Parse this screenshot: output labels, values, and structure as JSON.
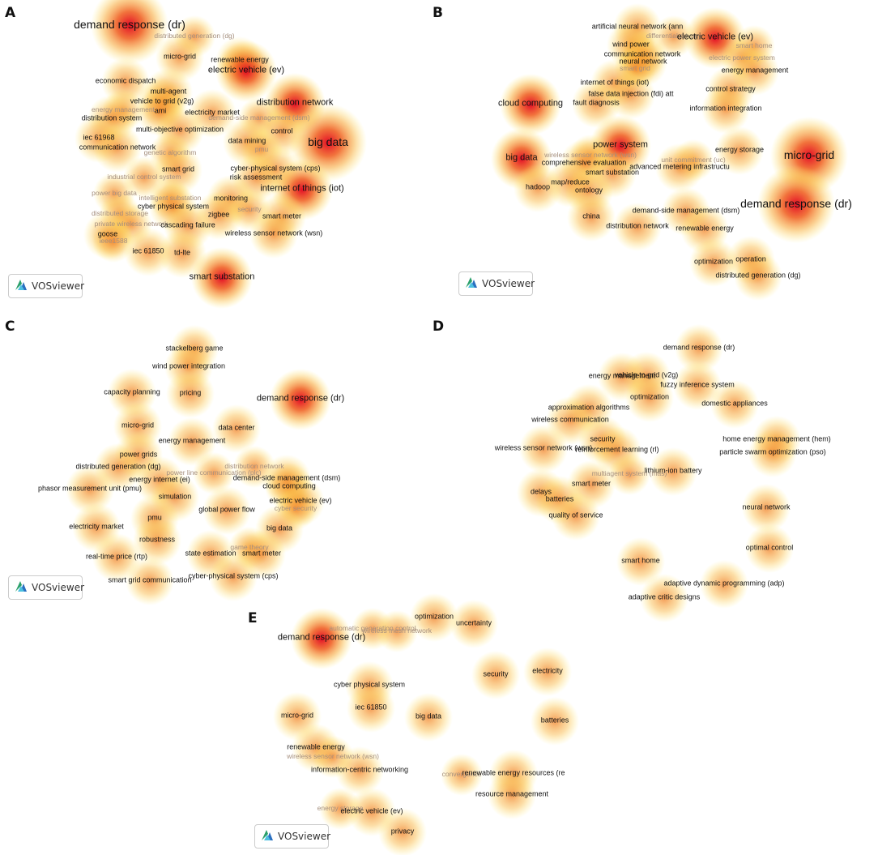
{
  "brand": {
    "vosviewer": "VOSviewer"
  },
  "colors": {
    "core": "#e2001a",
    "mid": "#f07a1e",
    "outer": "#ffe64a"
  },
  "panels": [
    {
      "label": "A",
      "terms": [
        {
          "t": "demand response (dr)",
          "w": 3
        },
        {
          "t": "distributed generation (dg)",
          "w": 0
        },
        {
          "t": "micro-grid",
          "w": 1
        },
        {
          "t": "renewable energy",
          "w": 1
        },
        {
          "t": "electric vehicle (ev)",
          "w": 2
        },
        {
          "t": "economic dispatch",
          "w": 1
        },
        {
          "t": "multi-agent",
          "w": 1
        },
        {
          "t": "vehicle to grid (v2g)",
          "w": 1
        },
        {
          "t": "energy management",
          "w": 0
        },
        {
          "t": "ami",
          "w": 1
        },
        {
          "t": "distribution system",
          "w": 1
        },
        {
          "t": "electricity market",
          "w": 1
        },
        {
          "t": "distribution network",
          "w": 2
        },
        {
          "t": "demand-side management (dsm)",
          "w": 0
        },
        {
          "t": "iec 61968",
          "w": 1
        },
        {
          "t": "multi-objective optimization",
          "w": 1
        },
        {
          "t": "control",
          "w": 1
        },
        {
          "t": "communication network",
          "w": 1
        },
        {
          "t": "data mining",
          "w": 1
        },
        {
          "t": "big data",
          "w": 3
        },
        {
          "t": "pmu",
          "w": 0
        },
        {
          "t": "genetic algorithm",
          "w": 0
        },
        {
          "t": "smart grid",
          "w": 1
        },
        {
          "t": "cyber-physical system (cps)",
          "w": 1
        },
        {
          "t": "industrial control system",
          "w": 0
        },
        {
          "t": "risk assessment",
          "w": 1
        },
        {
          "t": "internet of things (iot)",
          "w": 2
        },
        {
          "t": "power big data",
          "w": 0
        },
        {
          "t": "intelligent substation",
          "w": 0
        },
        {
          "t": "monitoring",
          "w": 1
        },
        {
          "t": "cyber physical system",
          "w": 1
        },
        {
          "t": "distributed storage",
          "w": 0
        },
        {
          "t": "zigbee",
          "w": 1
        },
        {
          "t": "security",
          "w": 0
        },
        {
          "t": "smart meter",
          "w": 1
        },
        {
          "t": "private wireless network",
          "w": 0
        },
        {
          "t": "cascading failure",
          "w": 1
        },
        {
          "t": "goose",
          "w": 1
        },
        {
          "t": "wireless sensor network (wsn)",
          "w": 1
        },
        {
          "t": "ieee1588",
          "w": 0
        },
        {
          "t": "iec 61850",
          "w": 1
        },
        {
          "t": "td-lte",
          "w": 1
        },
        {
          "t": "smart substation",
          "w": 2
        }
      ]
    },
    {
      "label": "B",
      "terms": [
        {
          "t": "artificial neural network (ann",
          "w": 1
        },
        {
          "t": "differential privacy",
          "w": 0
        },
        {
          "t": "wind power",
          "w": 1
        },
        {
          "t": "electric vehicle (ev)",
          "w": 2
        },
        {
          "t": "smart home",
          "w": 0
        },
        {
          "t": "communication network",
          "w": 1
        },
        {
          "t": "electric power system",
          "w": 0
        },
        {
          "t": "neural network",
          "w": 1
        },
        {
          "t": "smart grid",
          "w": 0
        },
        {
          "t": "energy management",
          "w": 1
        },
        {
          "t": "internet of things (iot)",
          "w": 1
        },
        {
          "t": "control strategy",
          "w": 1
        },
        {
          "t": "false data injection (fdi) att",
          "w": 1
        },
        {
          "t": "cloud computing",
          "w": 2
        },
        {
          "t": "fault diagnosis",
          "w": 1
        },
        {
          "t": "information integration",
          "w": 1
        },
        {
          "t": "power system",
          "w": 2
        },
        {
          "t": "big data",
          "w": 2
        },
        {
          "t": "wireless sensor network (wsn)",
          "w": 0
        },
        {
          "t": "energy storage",
          "w": 1
        },
        {
          "t": "micro-grid",
          "w": 3
        },
        {
          "t": "comprehensive evaluation",
          "w": 1
        },
        {
          "t": "unit commitment (uc)",
          "w": 0
        },
        {
          "t": "smart substation",
          "w": 1
        },
        {
          "t": "advanced metering infrastructu",
          "w": 1
        },
        {
          "t": "map/reduce",
          "w": 1
        },
        {
          "t": "hadoop",
          "w": 1
        },
        {
          "t": "ontology",
          "w": 1
        },
        {
          "t": "demand response (dr)",
          "w": 3
        },
        {
          "t": "demand-side management (dsm)",
          "w": 1
        },
        {
          "t": "china",
          "w": 1
        },
        {
          "t": "distribution network",
          "w": 1
        },
        {
          "t": "renewable energy",
          "w": 1
        },
        {
          "t": "optimization",
          "w": 1
        },
        {
          "t": "operation",
          "w": 1
        },
        {
          "t": "distributed generation (dg)",
          "w": 1
        }
      ]
    },
    {
      "label": "C",
      "terms": [
        {
          "t": "stackelberg game",
          "w": 1
        },
        {
          "t": "wind power integration",
          "w": 1
        },
        {
          "t": "capacity planning",
          "w": 1
        },
        {
          "t": "pricing",
          "w": 1
        },
        {
          "t": "demand response (dr)",
          "w": 2
        },
        {
          "t": "micro-grid",
          "w": 1
        },
        {
          "t": "data center",
          "w": 1
        },
        {
          "t": "energy management",
          "w": 1
        },
        {
          "t": "power grids",
          "w": 1
        },
        {
          "t": "distribution network",
          "w": 0
        },
        {
          "t": "distributed generation (dg)",
          "w": 1
        },
        {
          "t": "power line communication (plc)",
          "w": 0
        },
        {
          "t": "energy internet (ei)",
          "w": 1
        },
        {
          "t": "demand-side management (dsm)",
          "w": 1
        },
        {
          "t": "phasor measurement unit (pmu)",
          "w": 1
        },
        {
          "t": "cloud computing",
          "w": 1
        },
        {
          "t": "simulation",
          "w": 1
        },
        {
          "t": "electric vehicle (ev)",
          "w": 1
        },
        {
          "t": "global power flow",
          "w": 1
        },
        {
          "t": "cyber security",
          "w": 0
        },
        {
          "t": "pmu",
          "w": 1
        },
        {
          "t": "electricity market",
          "w": 1
        },
        {
          "t": "big data",
          "w": 1
        },
        {
          "t": "robustness",
          "w": 1
        },
        {
          "t": "game theory",
          "w": 0
        },
        {
          "t": "state estimation",
          "w": 1
        },
        {
          "t": "smart meter",
          "w": 1
        },
        {
          "t": "real-time price (rtp)",
          "w": 1
        },
        {
          "t": "cyber-physical system (cps)",
          "w": 1
        },
        {
          "t": "smart grid communication",
          "w": 1
        }
      ]
    },
    {
      "label": "D",
      "terms": [
        {
          "t": "demand response (dr)",
          "w": 1
        },
        {
          "t": "vehicle to grid (v2g)",
          "w": 1
        },
        {
          "t": "energy management",
          "w": 1
        },
        {
          "t": "fuzzy inference system",
          "w": 1
        },
        {
          "t": "optimization",
          "w": 1
        },
        {
          "t": "domestic appliances",
          "w": 1
        },
        {
          "t": "approximation algorithms",
          "w": 1
        },
        {
          "t": "wireless communication",
          "w": 1
        },
        {
          "t": "home energy management (hem)",
          "w": 1
        },
        {
          "t": "security",
          "w": 1
        },
        {
          "t": "wireless sensor network (wsn)",
          "w": 1
        },
        {
          "t": "particle swarm optimization (pso)",
          "w": 1
        },
        {
          "t": "reinforcement learning (rl)",
          "w": 1
        },
        {
          "t": "lithium-ion battery",
          "w": 1
        },
        {
          "t": "multiagent system (mas)",
          "w": 0
        },
        {
          "t": "smart meter",
          "w": 1
        },
        {
          "t": "delays",
          "w": 1
        },
        {
          "t": "batteries",
          "w": 1
        },
        {
          "t": "neural network",
          "w": 1
        },
        {
          "t": "quality of service",
          "w": 1
        },
        {
          "t": "optimal control",
          "w": 1
        },
        {
          "t": "smart home",
          "w": 1
        },
        {
          "t": "adaptive dynamic programming (adp)",
          "w": 1
        },
        {
          "t": "adaptive critic designs",
          "w": 1
        }
      ]
    },
    {
      "label": "E",
      "terms": [
        {
          "t": "optimization",
          "w": 1
        },
        {
          "t": "uncertainty",
          "w": 1
        },
        {
          "t": "automatic generation control",
          "w": 0
        },
        {
          "t": "demand response (dr)",
          "w": 2
        },
        {
          "t": "wireless mesh network",
          "w": 0
        },
        {
          "t": "security",
          "w": 1
        },
        {
          "t": "electricity",
          "w": 1
        },
        {
          "t": "cyber physical system",
          "w": 1
        },
        {
          "t": "micro-grid",
          "w": 1
        },
        {
          "t": "iec 61850",
          "w": 1
        },
        {
          "t": "big data",
          "w": 1
        },
        {
          "t": "batteries",
          "w": 1
        },
        {
          "t": "renewable energy",
          "w": 1
        },
        {
          "t": "wireless sensor network (wsn)",
          "w": 0
        },
        {
          "t": "information-centric networking",
          "w": 1
        },
        {
          "t": "convergence",
          "w": 0
        },
        {
          "t": "renewable energy resources (re",
          "w": 1
        },
        {
          "t": "resource management",
          "w": 1
        },
        {
          "t": "energy storage",
          "w": 0
        },
        {
          "t": "electric vehicle (ev)",
          "w": 1
        },
        {
          "t": "privacy",
          "w": 1
        }
      ]
    }
  ]
}
